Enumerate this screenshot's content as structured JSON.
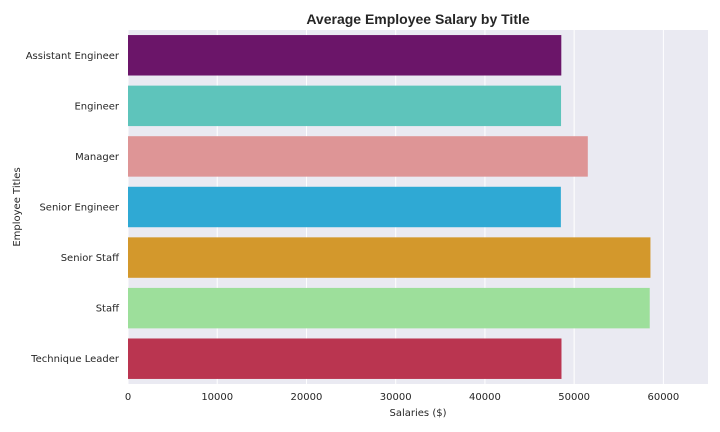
{
  "chart_data": {
    "type": "bar",
    "orientation": "horizontal",
    "title": "Average Employee Salary by Title",
    "xlabel": "Salaries ($)",
    "ylabel": "Employee Titles",
    "xlim": [
      0,
      65000
    ],
    "xticks": [
      0,
      10000,
      20000,
      30000,
      40000,
      50000,
      60000
    ],
    "grid": true,
    "categories": [
      "Assistant Engineer",
      "Engineer",
      "Manager",
      "Senior Engineer",
      "Senior Staff",
      "Staff",
      "Technique Leader"
    ],
    "values": [
      48560,
      48530,
      51530,
      48510,
      58550,
      58470,
      48580
    ],
    "colors": [
      "#6b1569",
      "#5ec4bb",
      "#de9596",
      "#2fa9d4",
      "#d3982c",
      "#9ddf9b",
      "#ba3550"
    ]
  }
}
